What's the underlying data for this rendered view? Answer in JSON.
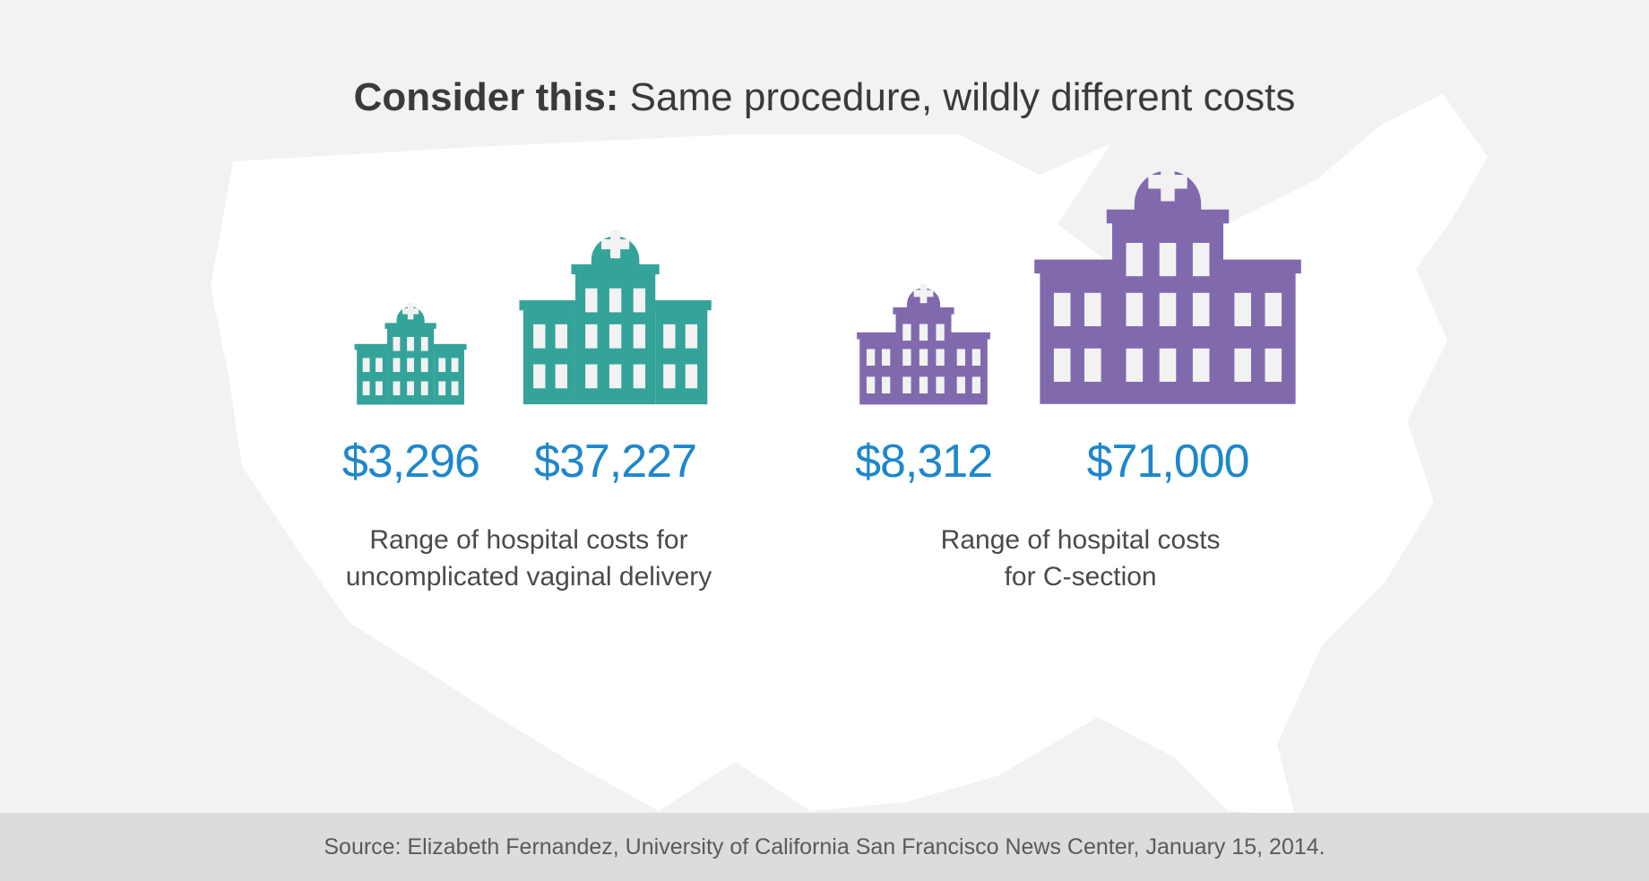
{
  "headline": {
    "bold": "Consider this:",
    "rest": " Same procedure, wildly different costs",
    "color": "#3a3a3a",
    "fontsize": 44
  },
  "background": {
    "page_color": "#f2f2f2",
    "map_color": "#ffffff",
    "source_bar_color": "#dcdcdc"
  },
  "groups": [
    {
      "id": "vaginal",
      "color": "#34a39a",
      "small_hospital_scale": 0.42,
      "large_hospital_scale": 0.72,
      "low_cost": "$3,296",
      "high_cost": "$37,227",
      "caption_line1": "Range of hospital costs for",
      "caption_line2": "uncomplicated vaginal delivery"
    },
    {
      "id": "csection",
      "color": "#8169ae",
      "small_hospital_scale": 0.5,
      "large_hospital_scale": 1.0,
      "low_cost": "$8,312",
      "high_cost": "$71,000",
      "caption_line1": "Range of hospital costs",
      "caption_line2": "for C-section"
    }
  ],
  "price_style": {
    "color": "#1e87cc",
    "fontsize": 52
  },
  "caption_style": {
    "color": "#4a4a4a",
    "fontsize": 30
  },
  "source": {
    "text": "Source: Elizabeth Fernandez, University of California San Francisco News Center, January 15, 2014.",
    "color": "#5a5a5a",
    "fontsize": 25
  },
  "hospital_icon": {
    "base_width": 310,
    "base_height": 300
  }
}
